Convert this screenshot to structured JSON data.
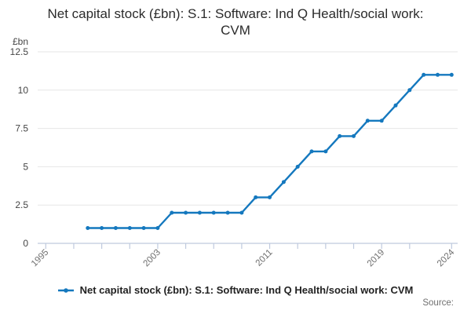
{
  "title": "Net capital stock (£bn): S.1: Software: Ind Q Health/social work: CVM",
  "legend": {
    "label": "Net capital stock (£bn): S.1: Software: Ind Q Health/social work: CVM"
  },
  "source_label": "Source:",
  "colors": {
    "line": "#1478be",
    "marker": "#1478be",
    "grid": "#e6e6e6",
    "axis": "#bfcade",
    "title_text": "#2b2b2b",
    "y_tick_text": "#454545",
    "x_tick_text": "#6e6e6e",
    "unit_text": "#454545",
    "legend_text": "#222222",
    "source_text": "#707070"
  },
  "chart_data": {
    "type": "line",
    "title": "Net capital stock (£bn): S.1: Software: Ind Q Health/social work: CVM",
    "series_name": "Net capital stock (£bn): S.1: Software: Ind Q Health/social work: CVM",
    "ylabel": "£bn",
    "xlabel": "",
    "grid": true,
    "legend_position": "bottom",
    "marker": "circle",
    "ylim": [
      0,
      12.5
    ],
    "y_ticks": [
      0,
      2.5,
      5,
      7.5,
      10,
      12.5
    ],
    "x_axis": {
      "range": [
        1995,
        2024
      ],
      "ticks": [
        1995,
        1997,
        1999,
        2001,
        2003,
        2005,
        2007,
        2009,
        2011,
        2013,
        2015,
        2017,
        2019,
        2021,
        2024
      ],
      "labeled_ticks": [
        1995,
        2003,
        2011,
        2019,
        2024
      ]
    },
    "x": [
      1998,
      1999,
      2000,
      2001,
      2002,
      2003,
      2004,
      2005,
      2006,
      2007,
      2008,
      2009,
      2010,
      2011,
      2012,
      2013,
      2014,
      2015,
      2016,
      2017,
      2018,
      2019,
      2020,
      2021,
      2022,
      2023,
      2024
    ],
    "values": [
      1,
      1,
      1,
      1,
      1,
      1,
      2,
      2,
      2,
      2,
      2,
      2,
      3,
      3,
      4,
      5,
      6,
      6,
      7,
      7,
      8,
      8,
      9,
      10,
      11,
      11,
      11
    ]
  }
}
